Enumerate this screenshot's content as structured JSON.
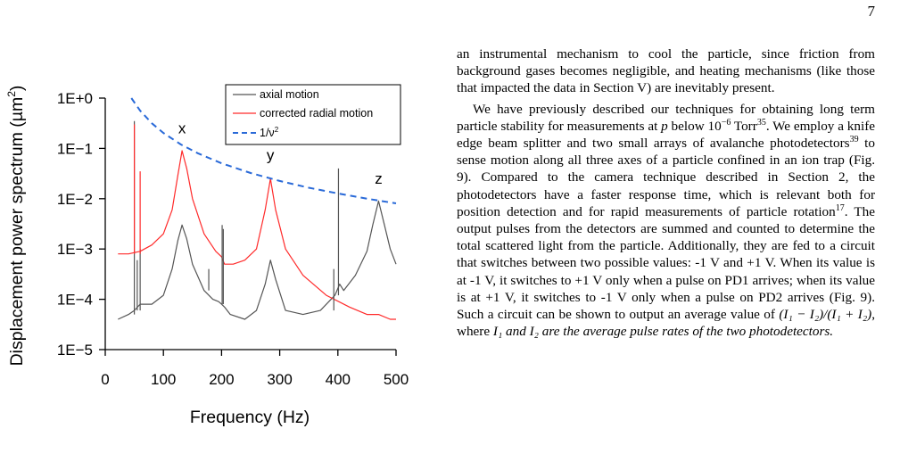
{
  "page_number": "7",
  "chart_data": {
    "type": "line",
    "xlabel": "Frequency (Hz)",
    "ylabel": "Displacement power spectrum (µm²)",
    "ylabel_prefix": "Displacement power spectrum (µm",
    "ylabel_exponent": "2",
    "ylabel_suffix": ")",
    "xlim": [
      0,
      500
    ],
    "ylim": [
      1e-05,
      1
    ],
    "yscale": "log",
    "x_ticks": [
      "0",
      "100",
      "200",
      "300",
      "400",
      "500"
    ],
    "y_ticks": [
      "1E+0",
      "1E−1",
      "1E−2",
      "1E−3",
      "1E−4",
      "1E−5"
    ],
    "legend": {
      "placement": "top-right",
      "axial": "axial motion",
      "radial": "corrected radial motion",
      "fit_prefix": "1/ν",
      "fit_exponent": "2"
    },
    "annotations": [
      {
        "text": "x",
        "freq": 132,
        "value": 0.2
      },
      {
        "text": "y",
        "freq": 284,
        "value": 0.058
      },
      {
        "text": "z",
        "freq": 470,
        "value": 0.02
      }
    ],
    "series": [
      {
        "name": "axial motion",
        "color": "#555555",
        "x": [
          22,
          40,
          50,
          60,
          80,
          100,
          115,
          125,
          132,
          140,
          150,
          170,
          185,
          195,
          200,
          205,
          215,
          240,
          260,
          275,
          284,
          293,
          310,
          340,
          370,
          395,
          403,
          410,
          430,
          450,
          460,
          470,
          480,
          490,
          500
        ],
        "y": [
          4e-05,
          5e-05,
          6e-05,
          8e-05,
          8e-05,
          0.00012,
          0.0004,
          0.0015,
          0.003,
          0.0016,
          0.0005,
          0.00015,
          0.0001,
          9e-05,
          8e-05,
          7e-05,
          5e-05,
          4e-05,
          6e-05,
          0.0002,
          0.0006,
          0.00025,
          6e-05,
          5e-05,
          6e-05,
          0.00012,
          0.0002,
          0.00015,
          0.0003,
          0.0009,
          0.003,
          0.009,
          0.003,
          0.001,
          0.0005
        ]
      },
      {
        "name": "corrected radial motion",
        "color": "#ff2a2a",
        "x": [
          22,
          40,
          60,
          80,
          100,
          115,
          125,
          132,
          140,
          150,
          170,
          190,
          200,
          205,
          220,
          240,
          260,
          275,
          284,
          293,
          310,
          340,
          380,
          420,
          450,
          470,
          490,
          500
        ],
        "y": [
          0.0008,
          0.0008,
          0.0009,
          0.0012,
          0.002,
          0.006,
          0.03,
          0.09,
          0.04,
          0.01,
          0.002,
          0.0009,
          0.0007,
          0.0005,
          0.0005,
          0.0006,
          0.001,
          0.006,
          0.025,
          0.006,
          0.001,
          0.0003,
          0.00012,
          7e-05,
          5e-05,
          5e-05,
          4e-05,
          4e-05
        ]
      },
      {
        "name": "1/ν²",
        "color": "#2a6ad8",
        "dashed": true,
        "x": [
          45,
          60,
          80,
          100,
          130,
          160,
          200,
          250,
          300,
          350,
          400,
          450,
          500
        ],
        "y": [
          1.0,
          0.5625,
          0.3164,
          0.2025,
          0.1198,
          0.0791,
          0.0506,
          0.0324,
          0.0225,
          0.0165,
          0.0127,
          0.01,
          0.0081
        ]
      }
    ],
    "spikes": [
      {
        "series": 0,
        "x": 50,
        "y": 0.35
      },
      {
        "series": 0,
        "x": 55,
        "y": 0.0006
      },
      {
        "series": 0,
        "x": 60,
        "y": 0.001
      },
      {
        "series": 0,
        "x": 178,
        "y": 0.0004
      },
      {
        "series": 0,
        "x": 201,
        "y": 0.003
      },
      {
        "series": 0,
        "x": 203,
        "y": 0.0025
      },
      {
        "series": 0,
        "x": 401,
        "y": 0.04
      },
      {
        "series": 0,
        "x": 393,
        "y": 0.0004
      },
      {
        "series": 1,
        "x": 50,
        "y": 0.3
      },
      {
        "series": 1,
        "x": 60,
        "y": 0.035
      }
    ]
  },
  "text": {
    "p1": "an instrumental mechanism to cool the particle, since friction from background gases becomes negligible, and heating mechanisms (like those that impacted the data in Section V) are inevitably present.",
    "p2_a": "We have previously described our techniques for obtaining long term particle stability for measurements at ",
    "p2_var_p": "p",
    "p2_b": " below 10",
    "p2_exp_1": "−6",
    "p2_c": " Torr",
    "p2_ref_35": "35",
    "p2_d": ". We employ a knife edge beam splitter and two small arrays of avalanche photodetectors",
    "p2_ref_39": "39",
    "p2_e": " to sense motion along all three axes of a particle confined in an ion trap (Fig. 9). Compared to the camera technique described in Section 2, the photodetectors have a faster response time, which is relevant both for position detection and for rapid measurements of particle rotation",
    "p2_ref_17": "17",
    "p2_f": ". The output pulses from the detectors are summed and counted to determine the total scattered light from the particle. Additionally, they are fed to a circuit that switches between two possible values: -1 V and +1 V. When its value is at -1 V, it switches to +1 V only when a pulse on PD1 arrives; when its value is at +1 V, it switches to -1 V only when a pulse on PD2 arrives (Fig. 9). Such a circuit can be shown to output an average value of ",
    "formula": "(I₁ − I₂)/(I₁ + I₂)",
    "p2_g": ", where ",
    "p2_h": "I₁ and I₂ are the average pulse rates of the two photodetectors."
  }
}
